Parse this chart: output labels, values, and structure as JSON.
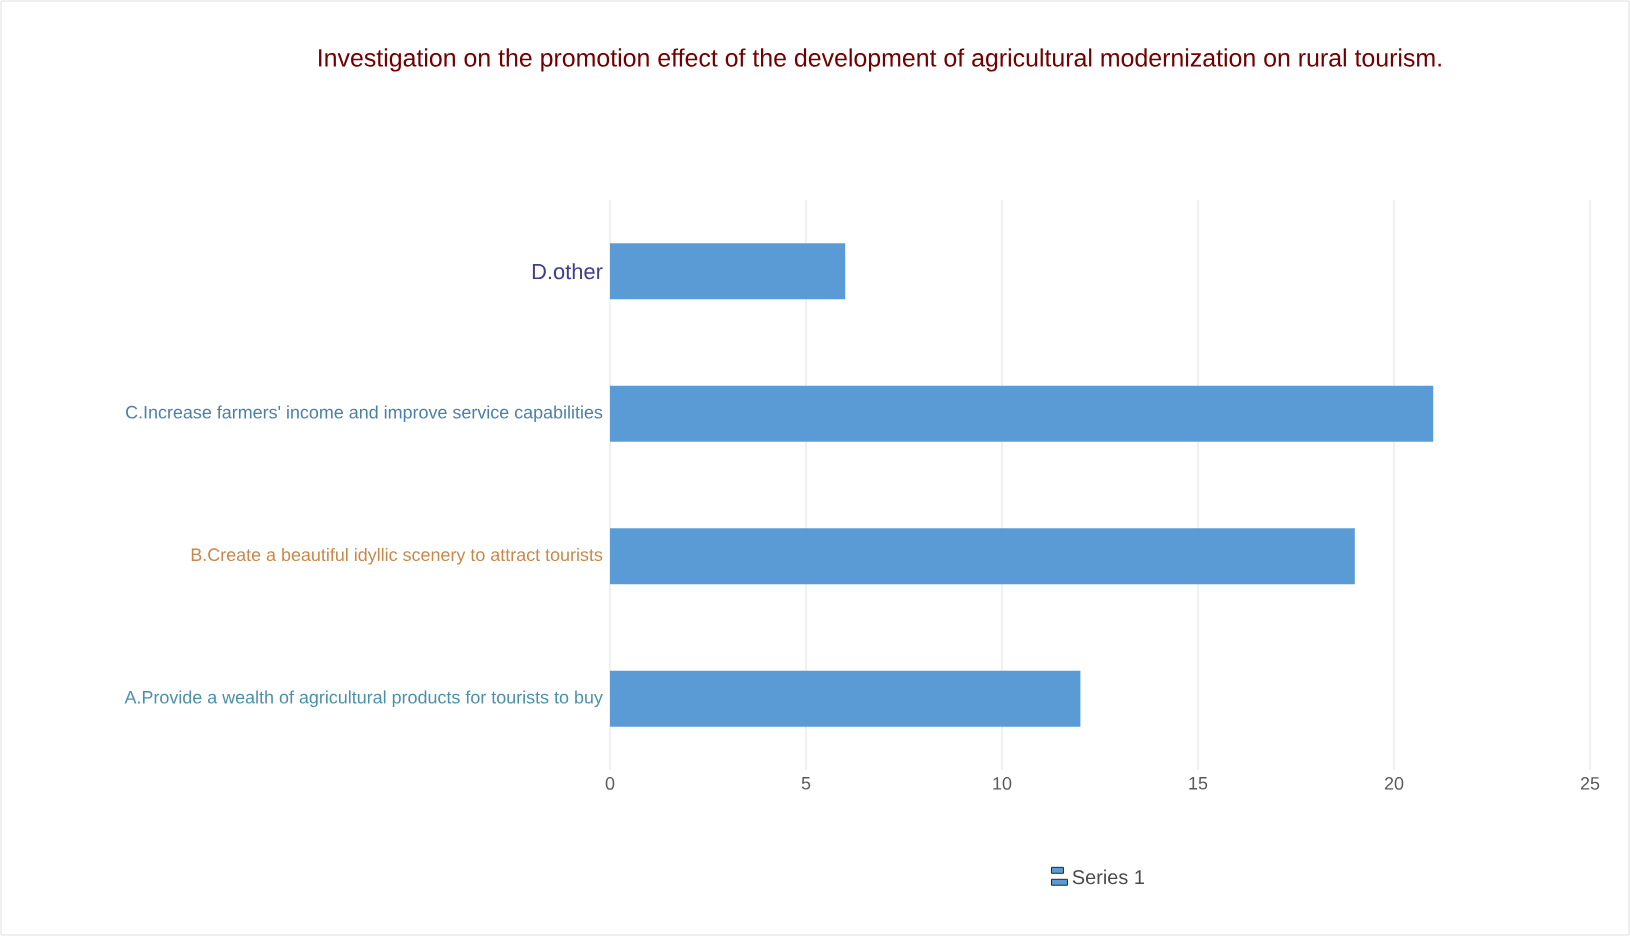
{
  "chart_data": {
    "type": "bar",
    "orientation": "horizontal",
    "title": "Investigation on the promotion effect of the development of agricultural modernization on rural tourism.",
    "categories": [
      "D.other",
      "C.Increase farmers' income and improve service capabilities",
      "B.Create a beautiful idyllic scenery to attract tourists",
      "A.Provide a wealth of agricultural products for tourists to buy"
    ],
    "series": [
      {
        "name": "Series 1",
        "color": "#5b9bd5",
        "values": [
          6,
          21,
          19,
          12
        ]
      }
    ],
    "xlim": [
      0,
      25
    ],
    "xticks": [
      0,
      5,
      10,
      15,
      20,
      25
    ],
    "grid": "x",
    "legend": "bottom"
  }
}
